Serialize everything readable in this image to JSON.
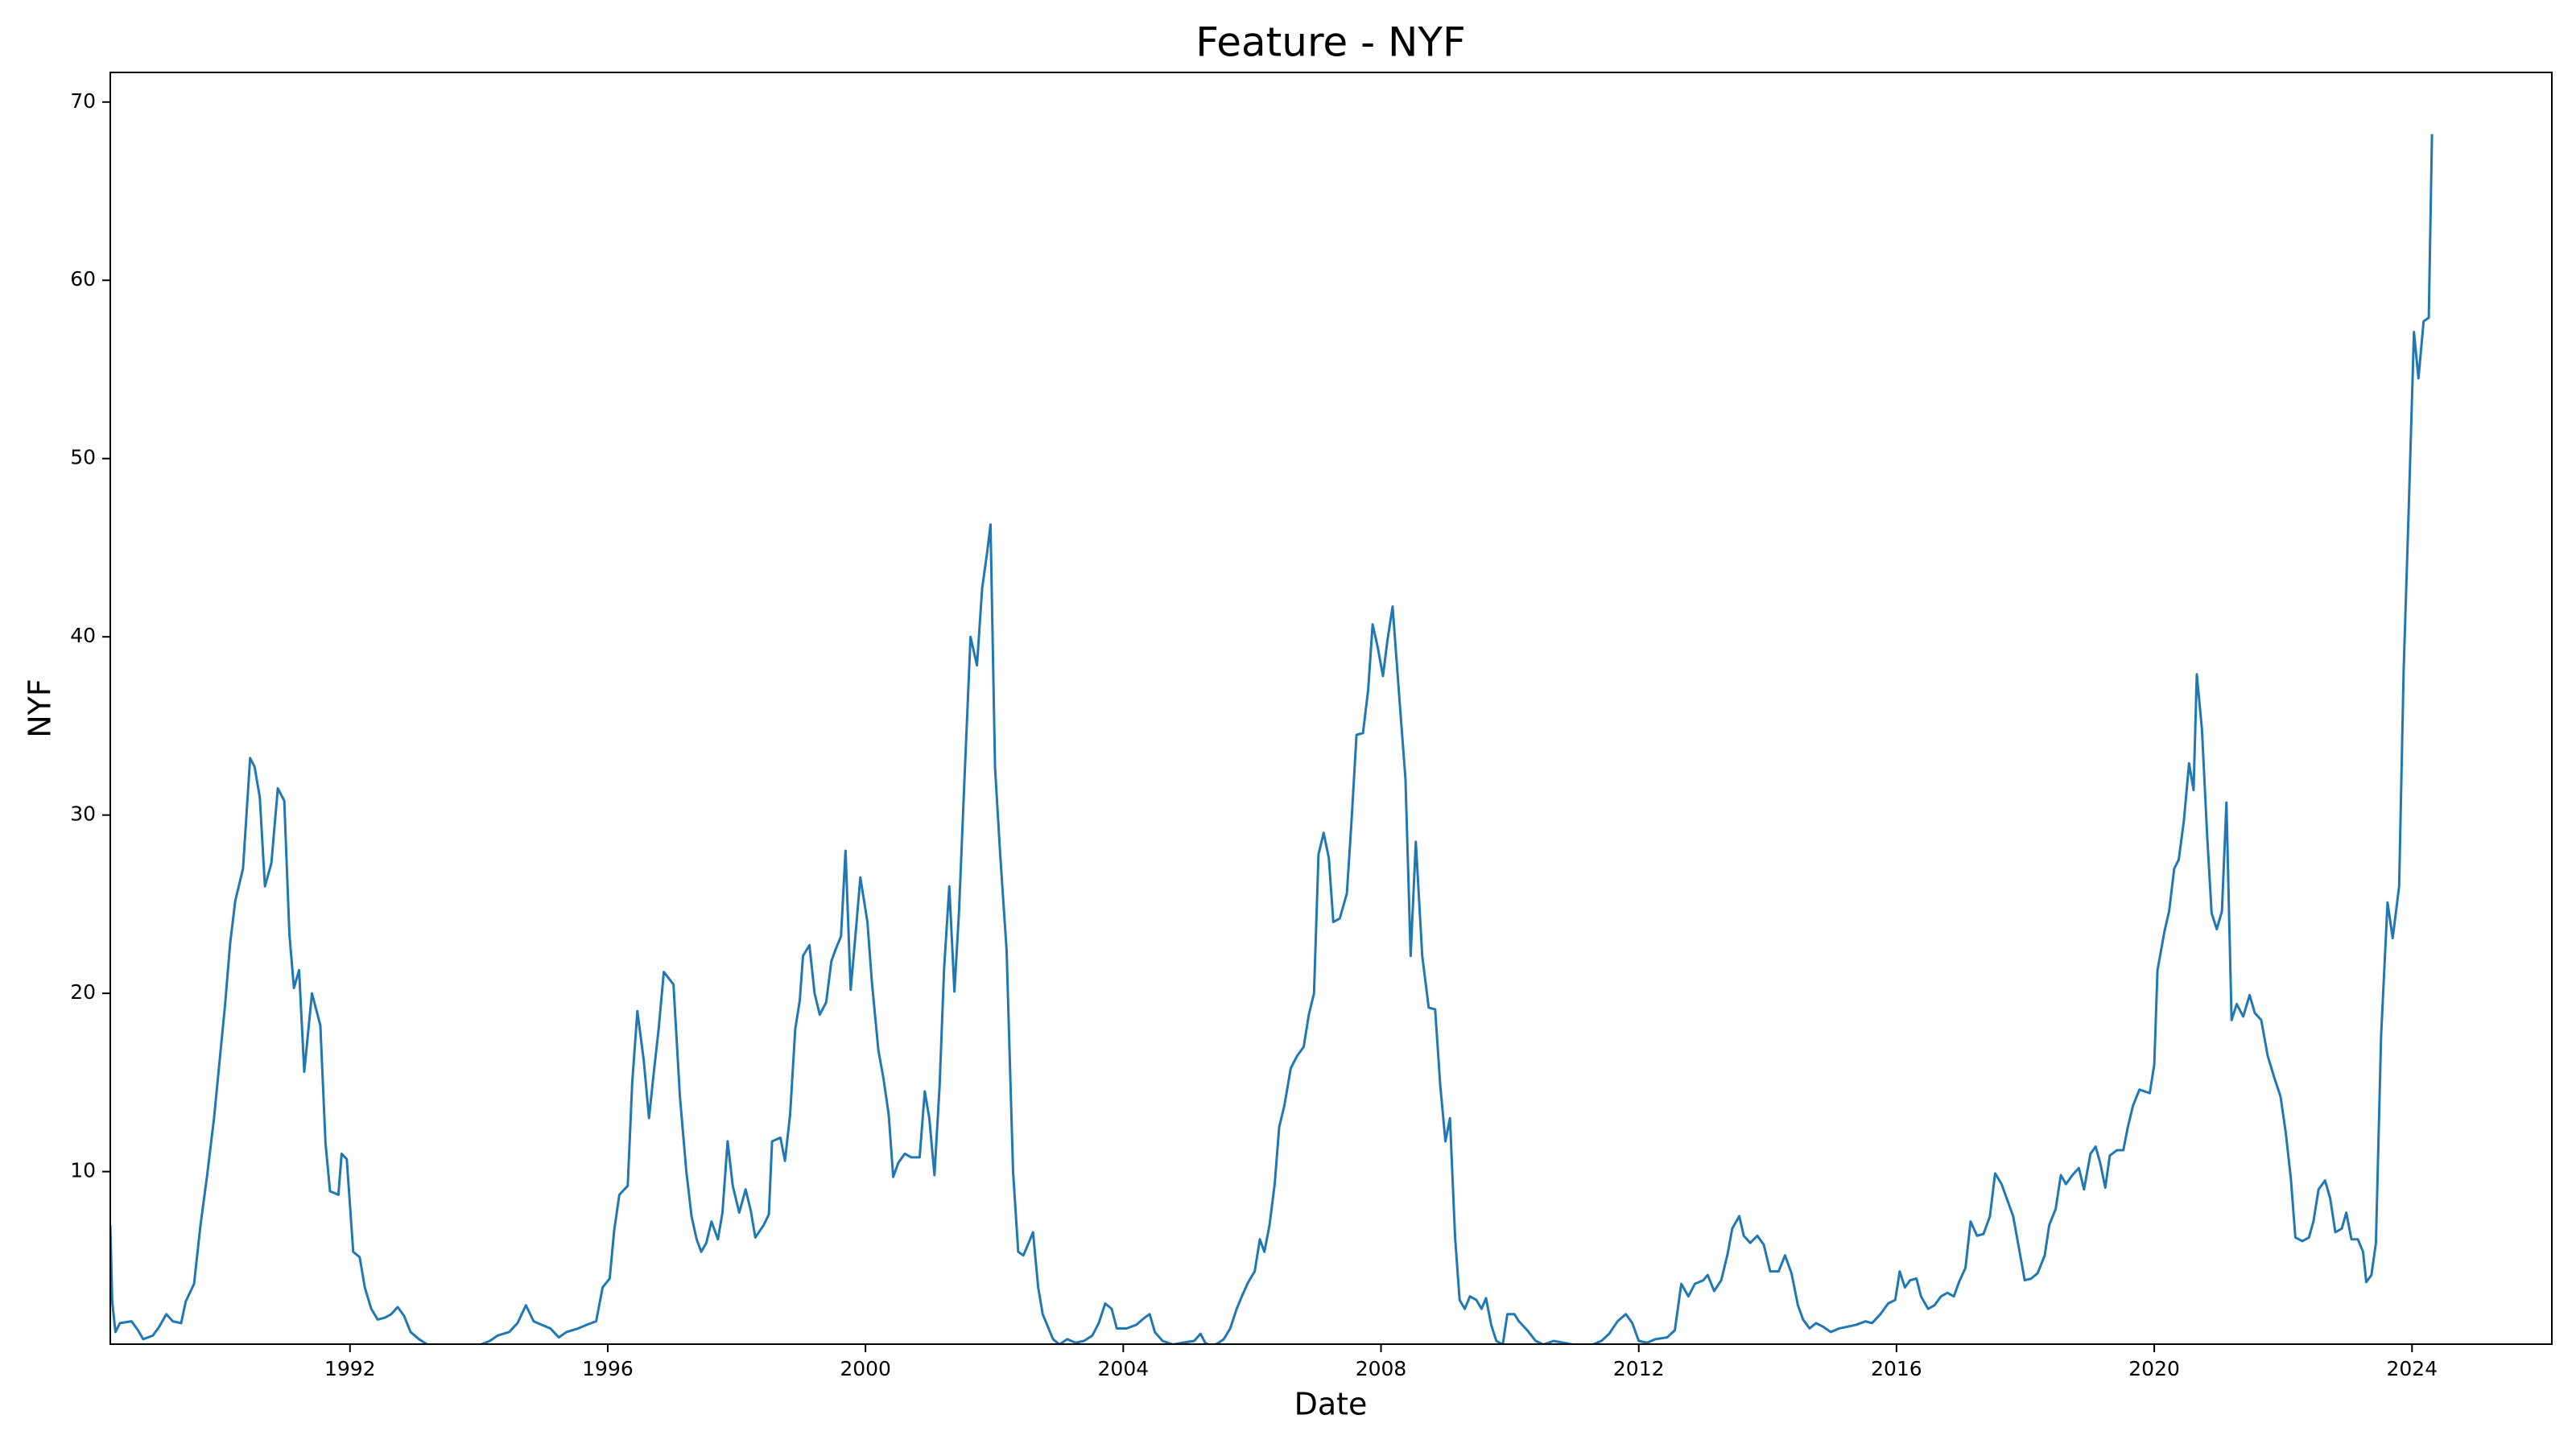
{
  "chart_data": {
    "type": "line",
    "title": "Feature - NYF",
    "x_label": "Date",
    "y_label": "NYF",
    "color": "#1f77b4",
    "grid": false,
    "xlim": [
      1988.28,
      2026.17
    ],
    "ylim": [
      0.32,
      71.66
    ],
    "xticks": [
      1992,
      1996,
      2000,
      2004,
      2008,
      2012,
      2016,
      2020,
      2024
    ],
    "yticks": [
      10,
      20,
      30,
      40,
      50,
      60,
      70
    ],
    "x": [
      1988.28,
      1988.31,
      1988.36,
      1988.43,
      1988.61,
      1988.71,
      1988.79,
      1988.94,
      1989.04,
      1989.15,
      1989.25,
      1989.38,
      1989.45,
      1989.58,
      1989.68,
      1989.78,
      1989.89,
      1989.96,
      1990.06,
      1990.14,
      1990.22,
      1990.34,
      1990.45,
      1990.52,
      1990.6,
      1990.68,
      1990.78,
      1990.88,
      1990.98,
      1991.06,
      1991.13,
      1991.21,
      1991.29,
      1991.41,
      1991.54,
      1991.62,
      1991.69,
      1991.82,
      1991.87,
      1991.95,
      1992.05,
      1992.15,
      1992.23,
      1992.33,
      1992.43,
      1992.54,
      1992.64,
      1992.74,
      1992.84,
      1992.94,
      1993.07,
      1993.2,
      1993.45,
      1993.71,
      1993.96,
      1994.17,
      1994.29,
      1994.47,
      1994.6,
      1994.73,
      1994.85,
      1994.98,
      1995.11,
      1995.24,
      1995.36,
      1995.54,
      1995.67,
      1995.82,
      1995.92,
      1996.03,
      1996.1,
      1996.18,
      1996.31,
      1996.38,
      1996.46,
      1996.56,
      1996.64,
      1996.71,
      1996.79,
      1996.87,
      1997.02,
      1997.12,
      1997.22,
      1997.3,
      1997.38,
      1997.45,
      1997.53,
      1997.61,
      1997.71,
      1997.78,
      1997.86,
      1997.94,
      1998.04,
      1998.14,
      1998.22,
      1998.29,
      1998.42,
      1998.5,
      1998.55,
      1998.68,
      1998.75,
      1998.83,
      1998.91,
      1998.98,
      1999.03,
      1999.13,
      1999.21,
      1999.29,
      1999.39,
      1999.47,
      1999.54,
      1999.62,
      1999.69,
      1999.77,
      1999.85,
      1999.92,
      2000.03,
      2000.1,
      2000.2,
      2000.28,
      2000.36,
      2000.43,
      2000.51,
      2000.61,
      2000.71,
      2000.84,
      2000.92,
      2000.99,
      2001.07,
      2001.15,
      2001.22,
      2001.3,
      2001.38,
      2001.45,
      2001.53,
      2001.63,
      2001.73,
      2001.81,
      2001.89,
      2001.94,
      2002.01,
      2002.09,
      2002.19,
      2002.29,
      2002.37,
      2002.45,
      2002.52,
      2002.6,
      2002.68,
      2002.75,
      2002.83,
      2002.91,
      2003.01,
      2003.13,
      2003.26,
      2003.39,
      2003.52,
      2003.62,
      2003.72,
      2003.82,
      2003.9,
      2004.05,
      2004.2,
      2004.33,
      2004.41,
      2004.49,
      2004.61,
      2004.77,
      2004.92,
      2005.1,
      2005.2,
      2005.27,
      2005.38,
      2005.48,
      2005.56,
      2005.66,
      2005.76,
      2005.84,
      2005.94,
      2006.04,
      2006.12,
      2006.19,
      2006.27,
      2006.35,
      2006.42,
      2006.5,
      2006.6,
      2006.7,
      2006.8,
      2006.88,
      2006.96,
      2007.03,
      2007.11,
      2007.19,
      2007.26,
      2007.36,
      2007.47,
      2007.54,
      2007.62,
      2007.72,
      2007.8,
      2007.87,
      2007.95,
      2008.03,
      2008.1,
      2008.18,
      2008.28,
      2008.38,
      2008.46,
      2008.54,
      2008.64,
      2008.74,
      2008.84,
      2008.92,
      2009.0,
      2009.07,
      2009.15,
      2009.22,
      2009.3,
      2009.38,
      2009.48,
      2009.56,
      2009.63,
      2009.71,
      2009.79,
      2009.89,
      2009.96,
      2010.07,
      2010.14,
      2010.27,
      2010.4,
      2010.52,
      2010.68,
      2010.83,
      2010.98,
      2011.16,
      2011.29,
      2011.42,
      2011.54,
      2011.67,
      2011.8,
      2011.9,
      2012.0,
      2012.13,
      2012.26,
      2012.44,
      2012.56,
      2012.66,
      2012.77,
      2012.87,
      2013.0,
      2013.07,
      2013.17,
      2013.28,
      2013.38,
      2013.45,
      2013.56,
      2013.63,
      2013.73,
      2013.84,
      2013.94,
      2014.04,
      2014.17,
      2014.27,
      2014.37,
      2014.47,
      2014.55,
      2014.65,
      2014.75,
      2014.86,
      2014.98,
      2015.11,
      2015.24,
      2015.37,
      2015.52,
      2015.62,
      2015.75,
      2015.87,
      2015.98,
      2016.05,
      2016.13,
      2016.21,
      2016.31,
      2016.38,
      2016.49,
      2016.59,
      2016.69,
      2016.79,
      2016.89,
      2016.97,
      2017.07,
      2017.15,
      2017.25,
      2017.35,
      2017.45,
      2017.53,
      2017.63,
      2017.71,
      2017.81,
      2017.91,
      2017.99,
      2018.09,
      2018.19,
      2018.3,
      2018.37,
      2018.47,
      2018.55,
      2018.63,
      2018.73,
      2018.83,
      2018.91,
      2019.01,
      2019.09,
      2019.16,
      2019.24,
      2019.31,
      2019.42,
      2019.52,
      2019.59,
      2019.67,
      2019.77,
      2019.85,
      2019.93,
      2020.0,
      2020.05,
      2020.16,
      2020.23,
      2020.31,
      2020.38,
      2020.46,
      2020.54,
      2020.61,
      2020.66,
      2020.74,
      2020.82,
      2020.89,
      2020.97,
      2021.05,
      2021.12,
      2021.2,
      2021.28,
      2021.38,
      2021.48,
      2021.56,
      2021.66,
      2021.76,
      2021.86,
      2021.96,
      2022.04,
      2022.12,
      2022.19,
      2022.3,
      2022.4,
      2022.47,
      2022.55,
      2022.65,
      2022.73,
      2022.81,
      2022.91,
      2022.98,
      2023.06,
      2023.16,
      2023.24,
      2023.29,
      2023.37,
      2023.44,
      2023.52,
      2023.62,
      2023.7,
      2023.8,
      2023.87,
      2023.95,
      2024.03,
      2024.1,
      2024.18,
      2024.26,
      2024.31
    ],
    "values": [
      7,
      2.7,
      1.0,
      1.5,
      1.6,
      1.1,
      0.6,
      0.8,
      1.3,
      2.0,
      1.6,
      1.5,
      2.7,
      3.7,
      7.0,
      9.7,
      13.0,
      15.6,
      19.3,
      22.8,
      25.2,
      27.0,
      33.2,
      32.7,
      31.0,
      26.0,
      27.3,
      31.5,
      30.8,
      23.3,
      20.3,
      21.3,
      15.6,
      20.0,
      18.2,
      11.6,
      8.9,
      8.7,
      11.0,
      10.7,
      5.5,
      5.2,
      3.5,
      2.3,
      1.7,
      1.8,
      2.0,
      2.4,
      1.9,
      1.0,
      0.6,
      0.3,
      0.2,
      0.3,
      0.2,
      0.5,
      0.8,
      1.0,
      1.5,
      2.5,
      1.6,
      1.4,
      1.2,
      0.7,
      1.0,
      1.2,
      1.4,
      1.6,
      3.5,
      4.0,
      6.7,
      8.7,
      9.2,
      15.0,
      19.0,
      16.2,
      13.0,
      15.4,
      18.0,
      21.2,
      20.5,
      14.2,
      10.0,
      7.5,
      6.2,
      5.5,
      6.0,
      7.2,
      6.2,
      7.7,
      11.7,
      9.2,
      7.7,
      9.0,
      7.8,
      6.3,
      7.0,
      7.6,
      11.7,
      11.9,
      10.6,
      13.2,
      18.0,
      19.6,
      22.1,
      22.7,
      20.0,
      18.8,
      19.5,
      21.8,
      22.5,
      23.2,
      28.0,
      20.2,
      23.5,
      26.5,
      24.0,
      20.6,
      16.8,
      15.2,
      13.2,
      9.7,
      10.5,
      11.0,
      10.8,
      10.8,
      14.5,
      13.0,
      9.8,
      14.8,
      21.4,
      26.0,
      20.1,
      24.5,
      31.5,
      40.0,
      38.4,
      42.7,
      44.8,
      46.3,
      32.7,
      27.8,
      22.4,
      10.0,
      5.5,
      5.3,
      5.9,
      6.6,
      3.5,
      2.0,
      1.3,
      0.6,
      0.3,
      0.6,
      0.4,
      0.5,
      0.8,
      1.5,
      2.6,
      2.3,
      1.2,
      1.2,
      1.4,
      1.8,
      2.0,
      1.0,
      0.5,
      0.3,
      0.4,
      0.5,
      0.9,
      0.4,
      0.2,
      0.4,
      0.6,
      1.2,
      2.3,
      3.0,
      3.8,
      4.4,
      6.2,
      5.5,
      7.0,
      9.3,
      12.5,
      13.7,
      15.8,
      16.5,
      17.0,
      18.8,
      20.0,
      27.8,
      29.0,
      27.6,
      24.0,
      24.2,
      25.6,
      29.5,
      34.5,
      34.6,
      37.0,
      40.7,
      39.4,
      37.8,
      39.8,
      41.7,
      36.8,
      32.0,
      22.1,
      28.5,
      22.1,
      19.2,
      19.1,
      14.8,
      11.7,
      13.0,
      6.3,
      2.8,
      2.3,
      3.0,
      2.8,
      2.3,
      2.9,
      1.4,
      0.5,
      0.3,
      2.0,
      2.0,
      1.6,
      1.1,
      0.5,
      0.3,
      0.5,
      0.4,
      0.3,
      0.2,
      0.3,
      0.5,
      0.9,
      1.6,
      2.0,
      1.5,
      0.5,
      0.4,
      0.6,
      0.7,
      1.1,
      3.7,
      3.0,
      3.7,
      3.9,
      4.2,
      3.3,
      3.9,
      5.4,
      6.8,
      7.5,
      6.4,
      6.0,
      6.4,
      5.9,
      4.4,
      4.4,
      5.3,
      4.3,
      2.5,
      1.7,
      1.2,
      1.5,
      1.3,
      1.0,
      1.2,
      1.3,
      1.4,
      1.6,
      1.5,
      2.0,
      2.6,
      2.8,
      4.4,
      3.5,
      3.9,
      4.0,
      3.0,
      2.3,
      2.5,
      3.0,
      3.2,
      3.0,
      3.8,
      4.6,
      7.2,
      6.4,
      6.5,
      7.5,
      9.9,
      9.3,
      8.5,
      7.5,
      5.5,
      3.9,
      4.0,
      4.3,
      5.3,
      7.0,
      7.9,
      9.8,
      9.3,
      9.8,
      10.2,
      9.0,
      11.0,
      11.4,
      10.5,
      9.1,
      10.9,
      11.2,
      11.2,
      12.5,
      13.7,
      14.6,
      14.5,
      14.4,
      16.0,
      21.3,
      23.5,
      24.6,
      27.0,
      27.5,
      29.7,
      32.9,
      31.4,
      37.9,
      34.8,
      28.9,
      24.5,
      23.6,
      24.6,
      30.7,
      18.5,
      19.4,
      18.7,
      19.9,
      18.9,
      18.5,
      16.5,
      15.3,
      14.2,
      12.2,
      9.6,
      6.3,
      6.1,
      6.3,
      7.2,
      9.0,
      9.5,
      8.5,
      6.6,
      6.8,
      7.7,
      6.2,
      6.2,
      5.5,
      3.8,
      4.2,
      6.0,
      17.6,
      25.1,
      23.1,
      26.0,
      38.1,
      47.3,
      57.1,
      54.5,
      57.7,
      57.9,
      68.2
    ]
  }
}
